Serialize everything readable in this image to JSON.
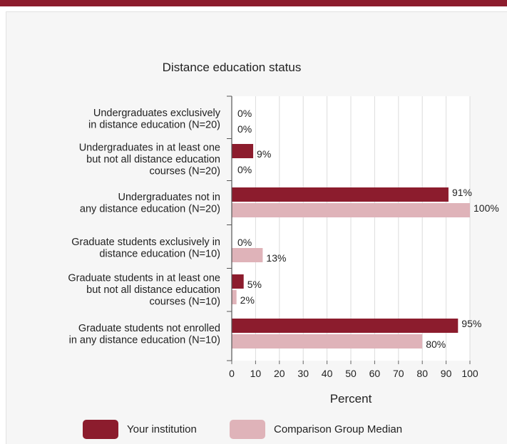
{
  "chart_data": {
    "type": "bar",
    "orientation": "horizontal",
    "title": "Distance education status",
    "xlabel": "Percent",
    "xlim": [
      0,
      100
    ],
    "xticks": [
      0,
      10,
      20,
      30,
      40,
      50,
      60,
      70,
      80,
      90,
      100
    ],
    "grid": true,
    "legend_position": "bottom",
    "categories": [
      [
        "Undergraduates exclusively",
        "in distance education (N=20)"
      ],
      [
        "Undergraduates in at least one",
        "but not all distance education",
        "courses (N=20)"
      ],
      [
        "Undergraduates not in",
        "any distance education (N=20)"
      ],
      [
        "Graduate students exclusively in",
        "distance education (N=10)"
      ],
      [
        "Graduate students in at least one",
        "but not all distance education",
        "courses (N=10)"
      ],
      [
        "Graduate students not enrolled",
        "in any distance education (N=10)"
      ]
    ],
    "series": [
      {
        "name": "Your institution",
        "color": "#8c1c2d",
        "values": [
          0,
          9,
          91,
          0,
          5,
          95
        ],
        "labels": [
          "0%",
          "9%",
          "91%",
          "0%",
          "5%",
          "95%"
        ]
      },
      {
        "name": "Comparison Group Median",
        "color": "#dfb3b9",
        "values": [
          0,
          0,
          100,
          13,
          2,
          80
        ],
        "labels": [
          "0%",
          "0%",
          "100%",
          "13%",
          "2%",
          "80%"
        ]
      }
    ]
  }
}
